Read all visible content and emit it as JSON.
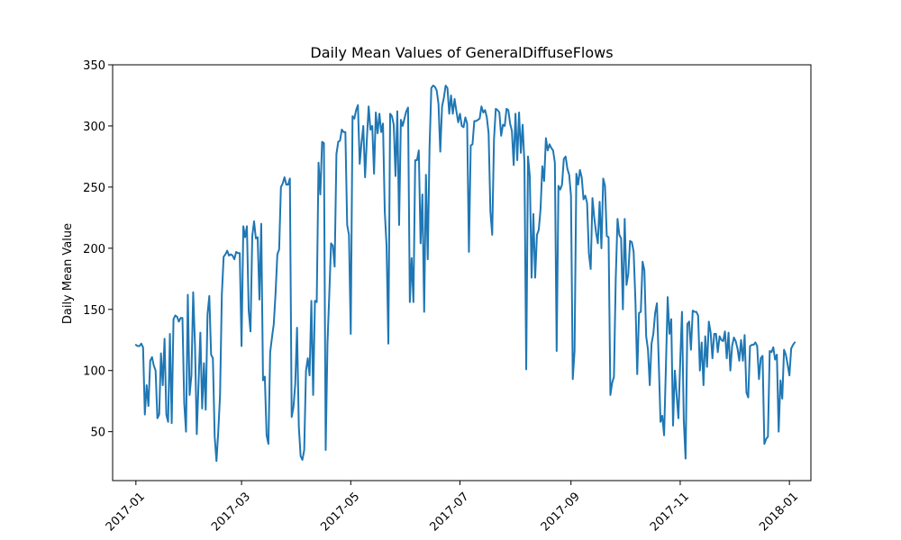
{
  "chart_data": {
    "type": "line",
    "title": "Daily Mean Values of GeneralDiffuseFlows",
    "xlabel": "",
    "ylabel": "Daily Mean Value",
    "x_start": "2017-01-01",
    "xlim": [
      "2016-12-19",
      "2018-01-13"
    ],
    "ylim": [
      10,
      350
    ],
    "xticks": [
      {
        "date": "2017-01-01",
        "label": "2017-01"
      },
      {
        "date": "2017-03-01",
        "label": "2017-03"
      },
      {
        "date": "2017-05-01",
        "label": "2017-05"
      },
      {
        "date": "2017-07-01",
        "label": "2017-07"
      },
      {
        "date": "2017-09-01",
        "label": "2017-09"
      },
      {
        "date": "2017-11-01",
        "label": "2017-11"
      },
      {
        "date": "2018-01-01",
        "label": "2018-01"
      }
    ],
    "yticks": [
      50,
      100,
      150,
      200,
      250,
      300,
      350
    ],
    "grid": false,
    "color": "#1f77b4",
    "series": [
      {
        "values": [
          121,
          120,
          120,
          122,
          119,
          64,
          88,
          71,
          108,
          111,
          104,
          100,
          61,
          64,
          114,
          88,
          126,
          64,
          58,
          130,
          57,
          142,
          145,
          144,
          140,
          143,
          143,
          73,
          50,
          162,
          80,
          96,
          164,
          121,
          48,
          90,
          131,
          69,
          106,
          68,
          146,
          161,
          113,
          110,
          46,
          26,
          50,
          80,
          162,
          193,
          195,
          198,
          194,
          195,
          194,
          191,
          197,
          196,
          196,
          120,
          218,
          209,
          218,
          149,
          132,
          210,
          222,
          208,
          209,
          158,
          220,
          92,
          95,
          47,
          40,
          115,
          127,
          138,
          163,
          195,
          199,
          250,
          253,
          258,
          252,
          252,
          257,
          62,
          70,
          89,
          135,
          54,
          30,
          27,
          35,
          100,
          110,
          96,
          157,
          80,
          157,
          156,
          270,
          244,
          287,
          286,
          35,
          122,
          162,
          204,
          202,
          185,
          277,
          287,
          288,
          297,
          295,
          295,
          219,
          211,
          130,
          308,
          306,
          313,
          317,
          269,
          286,
          300,
          258,
          289,
          316,
          297,
          300,
          261,
          311,
          294,
          310,
          295,
          302,
          230,
          202,
          122,
          310,
          308,
          301,
          259,
          312,
          219,
          305,
          300,
          306,
          312,
          315,
          156,
          192,
          156,
          272,
          272,
          280,
          204,
          244,
          148,
          260,
          191,
          282,
          331,
          333,
          332,
          329,
          318,
          279,
          316,
          323,
          333,
          331,
          310,
          325,
          310,
          322,
          312,
          303,
          310,
          300,
          299,
          307,
          302,
          197,
          284,
          285,
          304,
          304,
          305,
          306,
          316,
          311,
          313,
          307,
          294,
          230,
          211,
          289,
          314,
          313,
          311,
          292,
          301,
          300,
          314,
          313,
          302,
          296,
          268,
          310,
          272,
          311,
          278,
          301,
          270,
          101,
          275,
          259,
          176,
          228,
          176,
          211,
          215,
          232,
          267,
          255,
          290,
          280,
          285,
          282,
          280,
          270,
          116,
          251,
          248,
          252,
          273,
          275,
          265,
          260,
          243,
          93,
          116,
          261,
          252,
          264,
          258,
          240,
          243,
          237,
          196,
          183,
          241,
          225,
          213,
          204,
          238,
          200,
          257,
          251,
          210,
          209,
          80,
          90,
          95,
          175,
          224,
          211,
          208,
          150,
          224,
          170,
          179,
          206,
          205,
          197,
          157,
          97,
          147,
          148,
          189,
          182,
          128,
          117,
          88,
          122,
          130,
          147,
          155,
          108,
          58,
          63,
          47,
          102,
          160,
          130,
          142,
          55,
          100,
          80,
          61,
          107,
          148,
          59,
          28,
          138,
          140,
          117,
          149,
          148,
          148,
          145,
          100,
          123,
          88,
          128,
          103,
          140,
          131,
          110,
          130,
          130,
          115,
          128,
          125,
          124,
          132,
          110,
          131,
          100,
          120,
          127,
          124,
          118,
          108,
          125,
          108,
          129,
          82,
          78,
          120,
          121,
          121,
          123,
          120,
          93,
          110,
          112,
          40,
          44,
          46,
          116,
          115,
          119,
          109,
          113,
          50,
          92,
          77,
          117,
          113,
          105,
          96,
          118,
          121,
          123
        ]
      }
    ]
  }
}
